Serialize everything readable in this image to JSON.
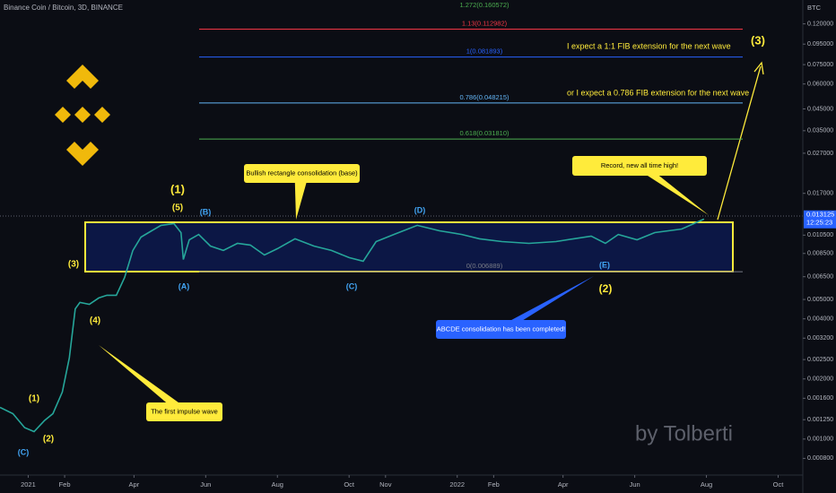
{
  "chart_data": {
    "type": "line",
    "title": "Binance Coin / Bitcoin, 3D, BINANCE",
    "y_unit": "BTC",
    "log_scale": true,
    "xlim": [
      -24,
      659
    ],
    "ylim": [
      0.00066,
      0.158
    ],
    "xticks": [
      {
        "value": 0,
        "label": "2021"
      },
      {
        "value": 31,
        "label": "Feb"
      },
      {
        "value": 90,
        "label": "Apr"
      },
      {
        "value": 151,
        "label": "Jun"
      },
      {
        "value": 212,
        "label": "Aug"
      },
      {
        "value": 273,
        "label": "Oct"
      },
      {
        "value": 304,
        "label": "Nov"
      },
      {
        "value": 365,
        "label": "2022"
      },
      {
        "value": 396,
        "label": "Feb"
      },
      {
        "value": 455,
        "label": "Apr"
      },
      {
        "value": 516,
        "label": "Jun"
      },
      {
        "value": 577,
        "label": "Aug"
      },
      {
        "value": 638,
        "label": "Oct"
      }
    ],
    "yticks": [
      {
        "value": 0.12,
        "label": "0.120000"
      },
      {
        "value": 0.095,
        "label": "0.095000"
      },
      {
        "value": 0.075,
        "label": "0.075000"
      },
      {
        "value": 0.06,
        "label": "0.060000"
      },
      {
        "value": 0.045,
        "label": "0.045000"
      },
      {
        "value": 0.035,
        "label": "0.035000"
      },
      {
        "value": 0.027,
        "label": "0.027000"
      },
      {
        "value": 0.017,
        "label": "0.017000"
      },
      {
        "value": 0.0105,
        "label": "0.010500"
      },
      {
        "value": 0.0085,
        "label": "0.008500"
      },
      {
        "value": 0.0065,
        "label": "0.006500"
      },
      {
        "value": 0.005,
        "label": "0.005000"
      },
      {
        "value": 0.004,
        "label": "0.004000"
      },
      {
        "value": 0.0032,
        "label": "0.003200"
      },
      {
        "value": 0.0025,
        "label": "0.002500"
      },
      {
        "value": 0.002,
        "label": "0.002000"
      },
      {
        "value": 0.0016,
        "label": "0.001600"
      },
      {
        "value": 0.00125,
        "label": "0.001250"
      },
      {
        "value": 0.001,
        "label": "0.001000"
      },
      {
        "value": 0.0008,
        "label": "0.000800"
      }
    ],
    "series": [
      {
        "color": "#26a69a",
        "x": [
          -24,
          -13,
          -3,
          5,
          14,
          21,
          29,
          35,
          40,
          44,
          52,
          60,
          67,
          75,
          82,
          89,
          96,
          105,
          113,
          124,
          130,
          132,
          137,
          145,
          155,
          166,
          178,
          189,
          201,
          212,
          227,
          243,
          258,
          273,
          285,
          296,
          311,
          331,
          350,
          369,
          384,
          403,
          426,
          449,
          464,
          479,
          491,
          502,
          518,
          533,
          556,
          575
        ],
        "values": [
          0.00144,
          0.00134,
          0.00114,
          0.00109,
          0.00124,
          0.00134,
          0.00172,
          0.00255,
          0.00449,
          0.00483,
          0.00473,
          0.00509,
          0.00525,
          0.00525,
          0.00644,
          0.0088,
          0.01026,
          0.01104,
          0.01175,
          0.01199,
          0.01081,
          0.00793,
          0.00995,
          0.01058,
          0.00926,
          0.0088,
          0.00955,
          0.00936,
          0.00835,
          0.00898,
          0.01006,
          0.00926,
          0.0088,
          0.0081,
          0.00777,
          0.00975,
          0.01058,
          0.01175,
          0.01104,
          0.01058,
          0.01006,
          0.00975,
          0.00955,
          0.00975,
          0.01006,
          0.01038,
          0.00955,
          0.01058,
          0.00995,
          0.01081,
          0.01127,
          0.01263
        ]
      }
    ],
    "last_price": 0.013125,
    "countdown": "12:25:23",
    "fib_levels": [
      {
        "label": "1.272(0.160572)",
        "value": 0.160572,
        "color": "#4caf50"
      },
      {
        "label": "1.13(0.112982)",
        "value": 0.112982,
        "color": "#f23645"
      },
      {
        "label": "1(0.081893)",
        "value": 0.081893,
        "color": "#2962ff"
      },
      {
        "label": "0.786(0.048215)",
        "value": 0.048215,
        "color": "#64b5f6"
      },
      {
        "label": "0.618(0.031810)",
        "value": 0.03181,
        "color": "#4caf50"
      },
      {
        "label": "0(0.006889)",
        "value": 0.006889,
        "color": "#787b86"
      }
    ],
    "wave_labels": [
      "(1)",
      "(5)",
      "(B)",
      "(D)",
      "(A)",
      "(C)",
      "(E)",
      "(2)",
      "(3)",
      "(4)",
      "(1)",
      "(2)",
      "(C)",
      "(3)"
    ],
    "callouts": [
      "Bullish rectangle consolidation (base)",
      "Record, new all time high!",
      "ABCDE consolidation has been completed!",
      "The first impulse wave"
    ],
    "notes": [
      "I expect a 1:1 FIB extension for the next wave",
      "or I expect a 0.786 FIB extension for the next wave"
    ],
    "watermark": "by Tolberti"
  }
}
